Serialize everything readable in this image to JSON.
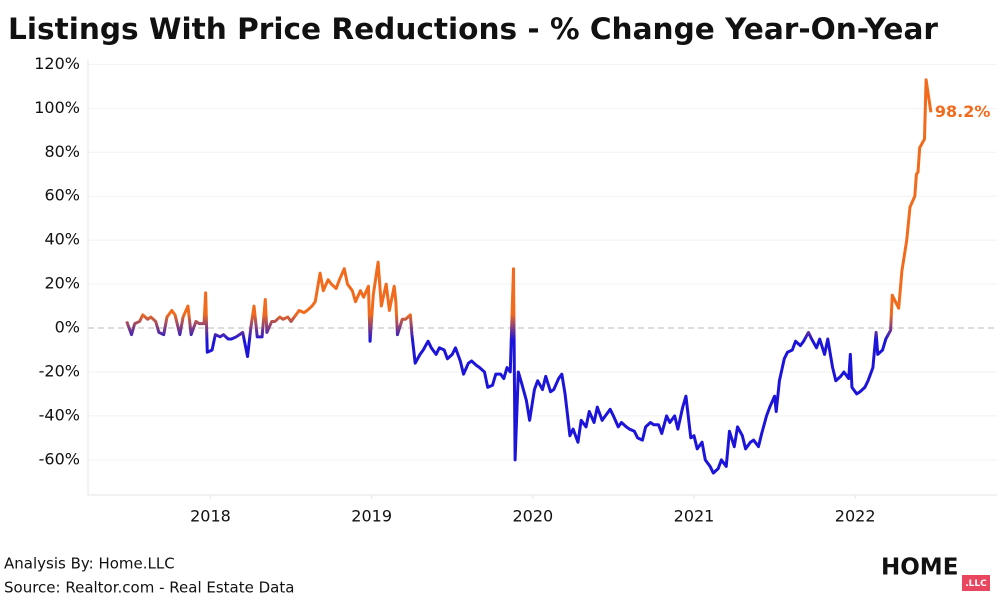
{
  "chart_data": {
    "type": "line",
    "title": "Listings With Price Reductions - % Change Year-On-Year",
    "color_positive": "#f26b1d",
    "color_negative": "#1c14d9",
    "grid": true,
    "zero_line": true,
    "xlim": [
      2017.24,
      2022.88
    ],
    "xticks": [
      2018,
      2019,
      2020,
      2021,
      2022
    ],
    "ylim": [
      -76,
      122
    ],
    "yticks": [
      {
        "value": -60,
        "label": "-60%"
      },
      {
        "value": -40,
        "label": "-40%"
      },
      {
        "value": -20,
        "label": "-20%"
      },
      {
        "value": 0,
        "label": "0%"
      },
      {
        "value": 20,
        "label": "20%"
      },
      {
        "value": 40,
        "label": "40%"
      },
      {
        "value": 60,
        "label": "60%"
      },
      {
        "value": 80,
        "label": "80%"
      },
      {
        "value": 100,
        "label": "100%"
      },
      {
        "value": 120,
        "label": "120%"
      }
    ],
    "x": [
      2017.48,
      2017.51,
      2017.53,
      2017.56,
      2017.58,
      2017.61,
      2017.63,
      2017.66,
      2017.68,
      2017.71,
      2017.73,
      2017.76,
      2017.78,
      2017.81,
      2017.83,
      2017.86,
      2017.88,
      2017.91,
      2017.93,
      2017.96,
      2017.97,
      2017.98,
      2018.01,
      2018.03,
      2018.06,
      2018.08,
      2018.11,
      2018.13,
      2018.16,
      2018.18,
      2018.2,
      2018.23,
      2018.25,
      2018.27,
      2018.29,
      2018.32,
      2018.34,
      2018.35,
      2018.38,
      2018.4,
      2018.43,
      2018.45,
      2018.48,
      2018.5,
      2018.53,
      2018.55,
      2018.58,
      2018.6,
      2018.63,
      2018.65,
      2018.68,
      2018.7,
      2018.73,
      2018.75,
      2018.78,
      2018.8,
      2018.83,
      2018.85,
      2018.88,
      2018.9,
      2018.93,
      2018.95,
      2018.98,
      2018.99,
      2019.01,
      2019.04,
      2019.06,
      2019.09,
      2019.11,
      2019.14,
      2019.15,
      2019.16,
      2019.19,
      2019.21,
      2019.24,
      2019.25,
      2019.27,
      2019.3,
      2019.32,
      2019.35,
      2019.37,
      2019.4,
      2019.42,
      2019.45,
      2019.47,
      2019.5,
      2019.52,
      2019.55,
      2019.57,
      2019.6,
      2019.62,
      2019.65,
      2019.67,
      2019.7,
      2019.72,
      2019.75,
      2019.77,
      2019.8,
      2019.82,
      2019.84,
      2019.86,
      2019.88,
      2019.89,
      2019.91,
      2019.93,
      2019.96,
      2019.98,
      2020.01,
      2020.03,
      2020.06,
      2020.08,
      2020.11,
      2020.13,
      2020.16,
      2020.18,
      2020.2,
      2020.23,
      2020.25,
      2020.28,
      2020.3,
      2020.33,
      2020.35,
      2020.38,
      2020.4,
      2020.43,
      2020.45,
      2020.48,
      2020.5,
      2020.53,
      2020.55,
      2020.58,
      2020.6,
      2020.63,
      2020.65,
      2020.68,
      2020.7,
      2020.73,
      2020.75,
      2020.78,
      2020.8,
      2020.83,
      2020.85,
      2020.88,
      2020.9,
      2020.93,
      2020.95,
      2020.98,
      2021.0,
      2021.02,
      2021.05,
      2021.07,
      2021.1,
      2021.12,
      2021.15,
      2021.17,
      2021.2,
      2021.22,
      2021.25,
      2021.27,
      2021.3,
      2021.32,
      2021.35,
      2021.37,
      2021.4,
      2021.42,
      2021.45,
      2021.47,
      2021.5,
      2021.51,
      2021.53,
      2021.56,
      2021.58,
      2021.61,
      2021.63,
      2021.66,
      2021.68,
      2021.71,
      2021.73,
      2021.76,
      2021.78,
      2021.81,
      2021.83,
      2021.86,
      2021.88,
      2021.91,
      2021.93,
      2021.96,
      2021.97,
      2021.98,
      2022.01,
      2022.03,
      2022.06,
      2022.08,
      2022.11,
      2022.13,
      2022.14,
      2022.17,
      2022.19,
      2022.22,
      2022.23,
      2022.25,
      2022.27,
      2022.29,
      2022.32,
      2022.34,
      2022.37,
      2022.38,
      2022.39,
      2022.4,
      2022.43,
      2022.44,
      2022.47
    ],
    "values": [
      3,
      -3,
      2,
      3,
      6,
      4,
      5,
      3,
      -2,
      -3,
      5,
      8,
      6,
      -3,
      5,
      10,
      -3,
      3,
      2,
      2,
      16,
      -11,
      -10,
      -3,
      -4,
      -3,
      -5,
      -5,
      -4,
      -3,
      -2,
      -13,
      0,
      10,
      -4,
      -4,
      13,
      -2,
      3,
      3,
      5,
      4,
      5,
      3,
      6,
      8,
      7,
      8,
      10,
      12,
      25,
      17,
      22,
      20,
      18,
      22,
      27,
      20,
      17,
      12,
      17,
      14,
      19,
      -6,
      15,
      30,
      10,
      20,
      8,
      19,
      12,
      -3,
      4,
      4,
      6,
      -3,
      -16,
      -12,
      -10,
      -6,
      -9,
      -12,
      -9,
      -10,
      -14,
      -12,
      -9,
      -15,
      -21,
      -16,
      -15,
      -17,
      -18,
      -20,
      -27,
      -26,
      -21,
      -21,
      -23,
      -18,
      -20,
      27,
      -60,
      -20,
      -25,
      -33,
      -42,
      -28,
      -24,
      -28,
      -22,
      -29,
      -28,
      -23,
      -21,
      -30,
      -49,
      -46,
      -52,
      -42,
      -45,
      -38,
      -43,
      -36,
      -42,
      -40,
      -37,
      -40,
      -45,
      -43,
      -45,
      -46,
      -47,
      -50,
      -51,
      -45,
      -43,
      -44,
      -44,
      -48,
      -40,
      -43,
      -40,
      -46,
      -36,
      -31,
      -50,
      -49,
      -55,
      -52,
      -60,
      -63,
      -66,
      -64,
      -60,
      -63,
      -47,
      -54,
      -45,
      -49,
      -55,
      -52,
      -51,
      -54,
      -48,
      -40,
      -36,
      -31,
      -38,
      -24,
      -14,
      -11,
      -10,
      -6,
      -8,
      -6,
      -2,
      -5,
      -9,
      -5,
      -12,
      -5,
      -18,
      -24,
      -22,
      -20,
      -23,
      -12,
      -27,
      -30,
      -29,
      -27,
      -24,
      -18,
      -2,
      -12,
      -10,
      -5,
      -1,
      15,
      12,
      9,
      26,
      40,
      55,
      60,
      70,
      71,
      82,
      86,
      113,
      98.2
    ],
    "annotations": [
      {
        "x": 2022.47,
        "y": 98.2,
        "label": "98.2%"
      }
    ]
  },
  "footer": {
    "analysis": "Analysis By: Home.LLC",
    "source": "Source: Realtor.com - Real Estate Data"
  },
  "logo": {
    "word": "HOME",
    "suffix": ".LLC"
  }
}
